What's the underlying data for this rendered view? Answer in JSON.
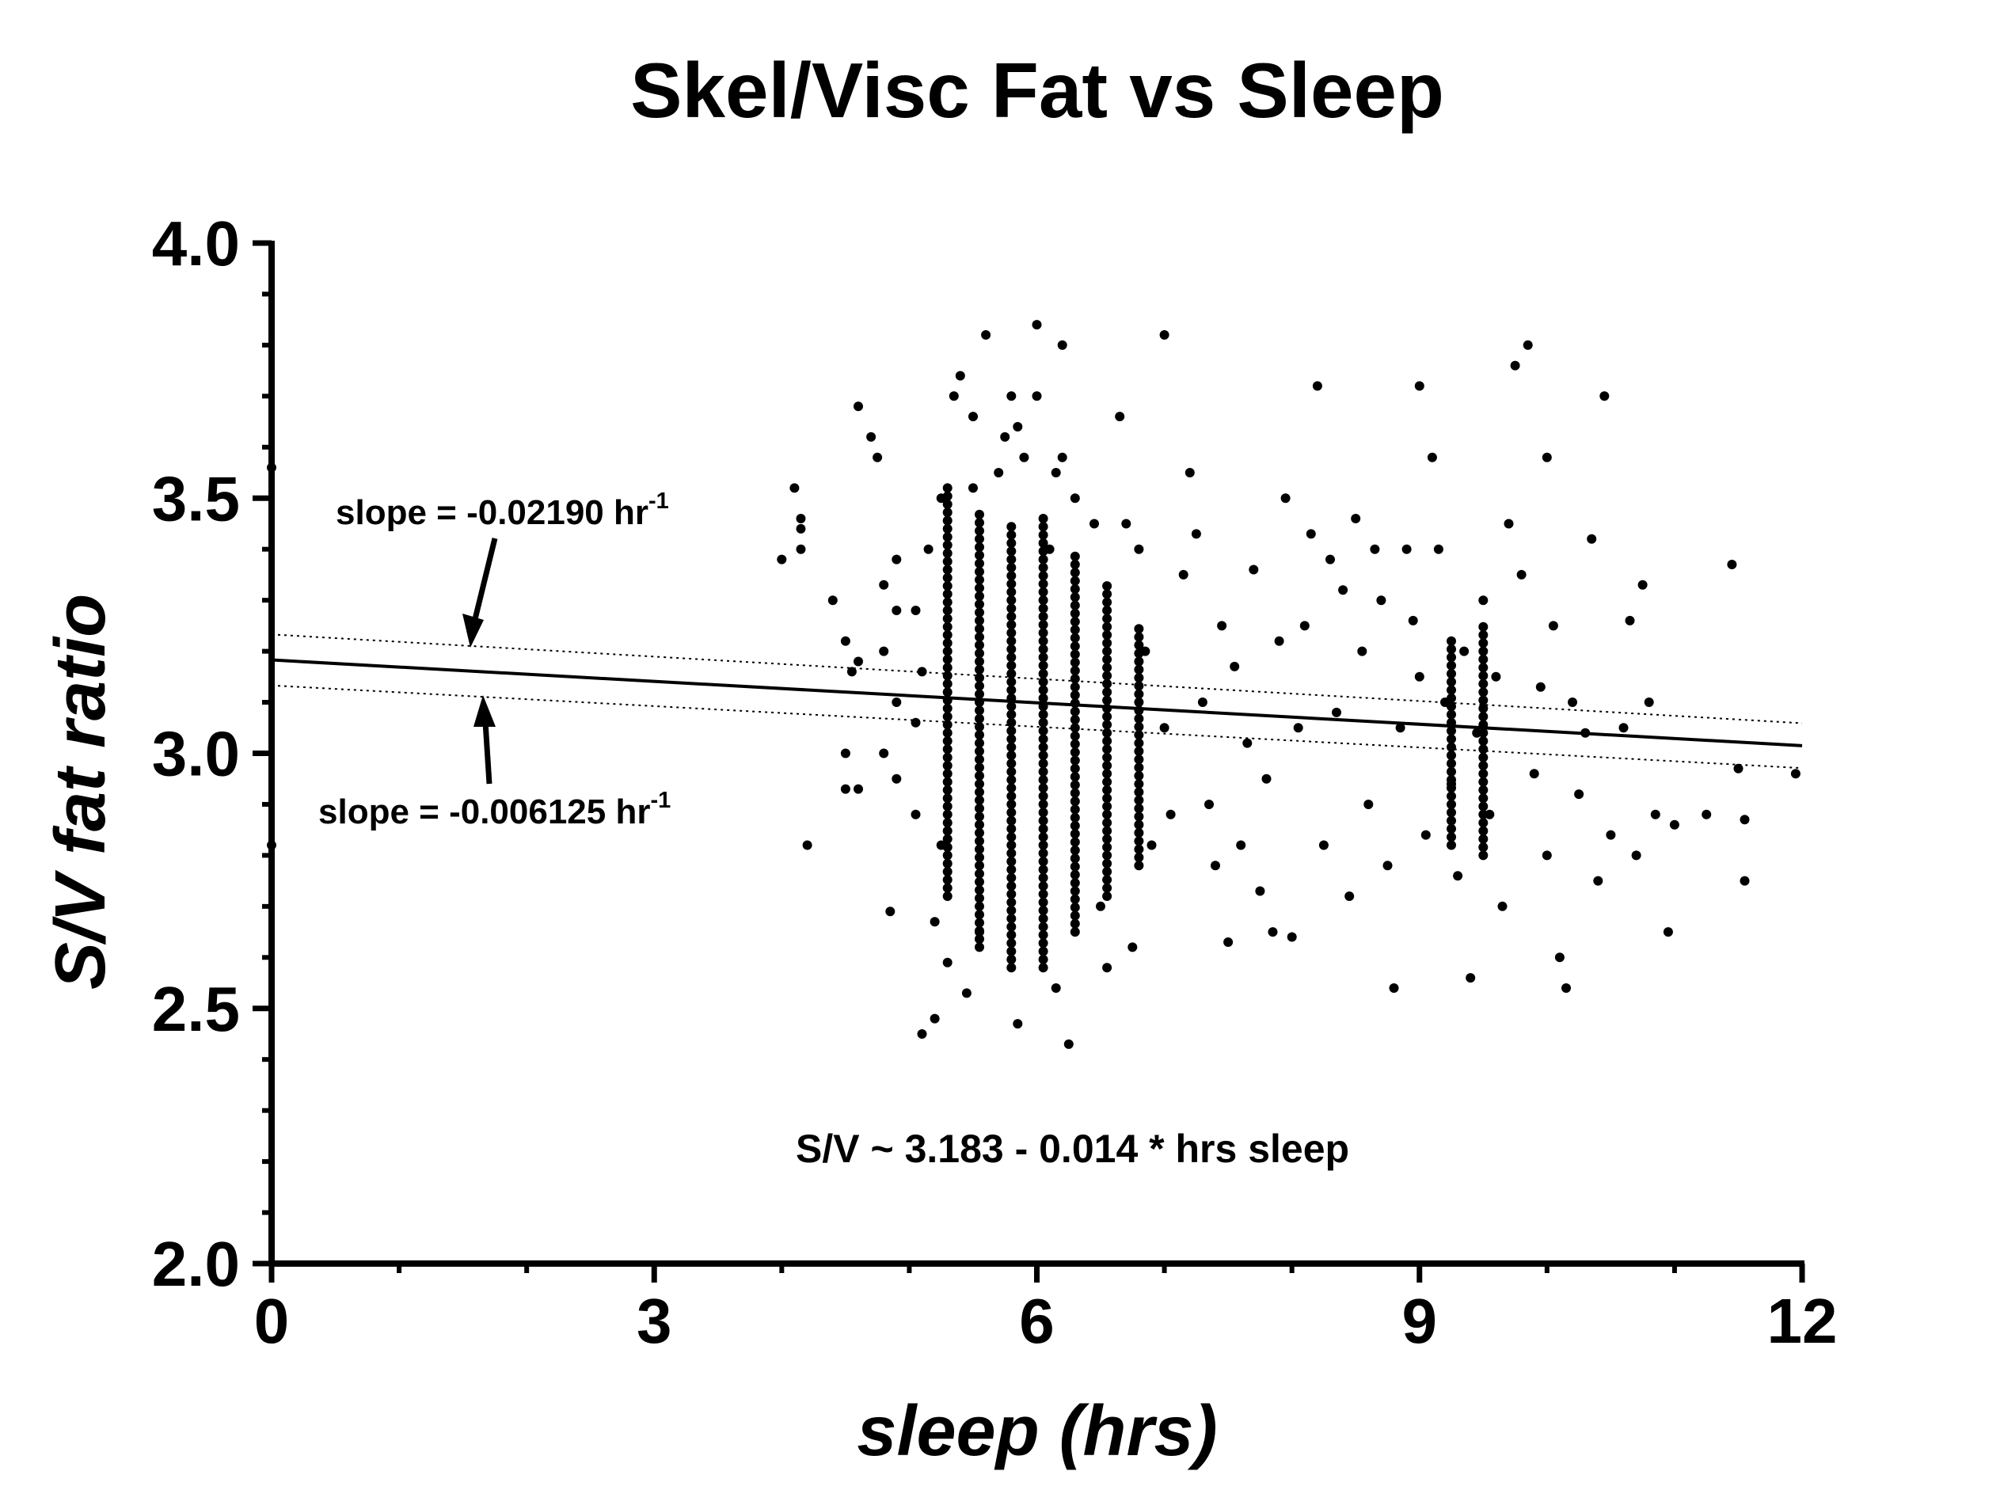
{
  "chart_data": {
    "type": "scatter",
    "title": "Skel/Visc Fat vs Sleep",
    "xlabel": "sleep (hrs)",
    "ylabel": "S/V fat ratio",
    "xlim": [
      0,
      12
    ],
    "ylim": [
      2.0,
      4.0
    ],
    "xticks": [
      "0",
      "3",
      "6",
      "9",
      "12"
    ],
    "yticks": [
      "2.0",
      "2.5",
      "3.0",
      "3.5",
      "4.0"
    ],
    "grid": false,
    "legend": "none",
    "marker_color": "#000000",
    "fit_line": {
      "intercept": 3.183,
      "slope": -0.014,
      "x_range": [
        0,
        12
      ]
    },
    "confidence_band": {
      "upper": {
        "intercept": 3.233,
        "slope": -0.0145
      },
      "lower": {
        "intercept": 3.133,
        "slope": -0.0135
      }
    },
    "annotations": {
      "upper_slope": {
        "text": "slope = -0.02190 hr",
        "sup": "-1"
      },
      "lower_slope": {
        "text": "slope = -0.006125 hr",
        "sup": "-1"
      },
      "equation": "S/V ~ 3.183 - 0.014 * hrs sleep"
    },
    "points": [
      [
        0.0,
        3.56
      ],
      [
        0.0,
        2.82
      ],
      [
        4.0,
        3.38
      ],
      [
        4.1,
        3.52
      ],
      [
        4.15,
        3.4
      ],
      [
        4.15,
        3.44
      ],
      [
        4.15,
        3.46
      ],
      [
        4.2,
        2.82
      ],
      [
        4.4,
        3.3
      ],
      [
        4.5,
        3.22
      ],
      [
        4.5,
        3.0
      ],
      [
        4.5,
        2.93
      ],
      [
        4.55,
        3.16
      ],
      [
        4.6,
        3.68
      ],
      [
        4.6,
        3.18
      ],
      [
        4.6,
        2.93
      ],
      [
        4.7,
        3.62
      ],
      [
        4.75,
        3.58
      ],
      [
        4.8,
        3.33
      ],
      [
        4.8,
        3.2
      ],
      [
        4.8,
        3.0
      ],
      [
        4.85,
        2.69
      ],
      [
        4.9,
        3.38
      ],
      [
        4.9,
        3.28
      ],
      [
        4.9,
        3.1
      ],
      [
        4.9,
        2.95
      ],
      [
        5.05,
        3.28
      ],
      [
        5.05,
        3.06
      ],
      [
        5.05,
        2.88
      ],
      [
        5.1,
        2.45
      ],
      [
        5.1,
        3.16
      ],
      [
        5.15,
        3.4
      ],
      [
        5.2,
        2.67
      ],
      [
        5.2,
        2.48
      ],
      [
        5.25,
        3.5
      ],
      [
        5.25,
        2.82
      ],
      [
        5.3,
        2.59
      ],
      [
        5.35,
        3.7
      ],
      [
        5.4,
        3.74
      ],
      [
        5.45,
        2.53
      ],
      [
        5.5,
        3.52
      ],
      [
        5.5,
        3.66
      ],
      [
        5.55,
        2.65
      ],
      [
        5.6,
        3.82
      ],
      [
        5.7,
        3.55
      ],
      [
        5.75,
        3.62
      ],
      [
        5.8,
        3.7
      ],
      [
        5.85,
        3.64
      ],
      [
        5.85,
        2.47
      ],
      [
        5.9,
        3.58
      ],
      [
        6.0,
        3.84
      ],
      [
        6.0,
        3.7
      ],
      [
        6.1,
        3.4
      ],
      [
        6.15,
        3.55
      ],
      [
        6.2,
        3.8
      ],
      [
        6.3,
        3.5
      ],
      [
        6.15,
        2.54
      ],
      [
        6.2,
        3.58
      ],
      [
        6.25,
        2.43
      ],
      [
        6.45,
        3.45
      ],
      [
        6.5,
        2.7
      ],
      [
        6.55,
        2.58
      ],
      [
        6.65,
        3.66
      ],
      [
        6.7,
        3.45
      ],
      [
        6.75,
        2.62
      ],
      [
        6.8,
        3.4
      ],
      [
        6.85,
        3.2
      ],
      [
        6.9,
        2.82
      ],
      [
        7.0,
        3.82
      ],
      [
        7.0,
        3.05
      ],
      [
        7.05,
        2.88
      ],
      [
        7.15,
        3.35
      ],
      [
        7.2,
        3.55
      ],
      [
        7.25,
        3.43
      ],
      [
        7.3,
        3.1
      ],
      [
        7.35,
        2.9
      ],
      [
        7.4,
        2.78
      ],
      [
        7.45,
        3.25
      ],
      [
        7.5,
        2.63
      ],
      [
        7.55,
        3.17
      ],
      [
        7.6,
        2.82
      ],
      [
        7.65,
        3.02
      ],
      [
        7.7,
        3.36
      ],
      [
        7.75,
        2.73
      ],
      [
        7.8,
        2.95
      ],
      [
        7.85,
        2.65
      ],
      [
        7.9,
        3.22
      ],
      [
        7.95,
        3.5
      ],
      [
        8.0,
        2.64
      ],
      [
        8.05,
        3.05
      ],
      [
        8.1,
        3.25
      ],
      [
        8.15,
        3.43
      ],
      [
        8.2,
        3.72
      ],
      [
        8.25,
        2.82
      ],
      [
        8.3,
        3.38
      ],
      [
        8.35,
        3.08
      ],
      [
        8.4,
        3.32
      ],
      [
        8.45,
        2.72
      ],
      [
        8.5,
        3.46
      ],
      [
        8.55,
        3.2
      ],
      [
        8.6,
        2.9
      ],
      [
        8.65,
        3.4
      ],
      [
        8.7,
        3.3
      ],
      [
        8.75,
        2.78
      ],
      [
        8.8,
        2.54
      ],
      [
        8.85,
        3.05
      ],
      [
        8.9,
        3.4
      ],
      [
        8.95,
        3.26
      ],
      [
        9.0,
        3.72
      ],
      [
        9.0,
        3.15
      ],
      [
        9.05,
        2.84
      ],
      [
        9.1,
        3.58
      ],
      [
        9.15,
        3.4
      ],
      [
        9.2,
        3.1
      ],
      [
        9.25,
        2.94
      ],
      [
        9.3,
        2.76
      ],
      [
        9.35,
        3.2
      ],
      [
        9.4,
        2.56
      ],
      [
        9.45,
        3.04
      ],
      [
        9.5,
        3.3
      ],
      [
        9.55,
        2.88
      ],
      [
        9.6,
        3.15
      ],
      [
        9.65,
        2.7
      ],
      [
        9.7,
        3.45
      ],
      [
        9.75,
        3.76
      ],
      [
        9.8,
        3.35
      ],
      [
        9.85,
        3.8
      ],
      [
        9.9,
        2.96
      ],
      [
        9.95,
        3.13
      ],
      [
        10.0,
        3.58
      ],
      [
        10.0,
        2.8
      ],
      [
        10.05,
        3.25
      ],
      [
        10.1,
        2.6
      ],
      [
        10.15,
        2.54
      ],
      [
        10.2,
        3.1
      ],
      [
        10.25,
        2.92
      ],
      [
        10.3,
        3.04
      ],
      [
        10.35,
        3.42
      ],
      [
        10.4,
        2.75
      ],
      [
        10.45,
        3.7
      ],
      [
        10.5,
        2.84
      ],
      [
        10.6,
        3.05
      ],
      [
        10.65,
        3.26
      ],
      [
        10.7,
        2.8
      ],
      [
        10.75,
        3.33
      ],
      [
        10.8,
        3.1
      ],
      [
        10.85,
        2.88
      ],
      [
        10.95,
        2.65
      ],
      [
        11.0,
        2.86
      ],
      [
        11.25,
        2.88
      ],
      [
        11.45,
        3.37
      ],
      [
        11.55,
        2.87
      ],
      [
        11.5,
        2.97
      ],
      [
        11.55,
        2.75
      ],
      [
        11.95,
        2.96
      ]
    ],
    "dense_clusters": [
      {
        "x": 5.3,
        "y_min": 2.72,
        "y_max": 3.52
      },
      {
        "x": 5.55,
        "y_min": 2.62,
        "y_max": 3.48
      },
      {
        "x": 5.8,
        "y_min": 2.58,
        "y_max": 3.45
      },
      {
        "x": 6.05,
        "y_min": 2.58,
        "y_max": 3.47
      },
      {
        "x": 6.3,
        "y_min": 2.65,
        "y_max": 3.4
      },
      {
        "x": 6.55,
        "y_min": 2.72,
        "y_max": 3.33
      },
      {
        "x": 6.8,
        "y_min": 2.78,
        "y_max": 3.25
      },
      {
        "x": 9.25,
        "y_min": 2.82,
        "y_max": 3.22
      },
      {
        "x": 9.5,
        "y_min": 2.8,
        "y_max": 3.25
      }
    ]
  }
}
